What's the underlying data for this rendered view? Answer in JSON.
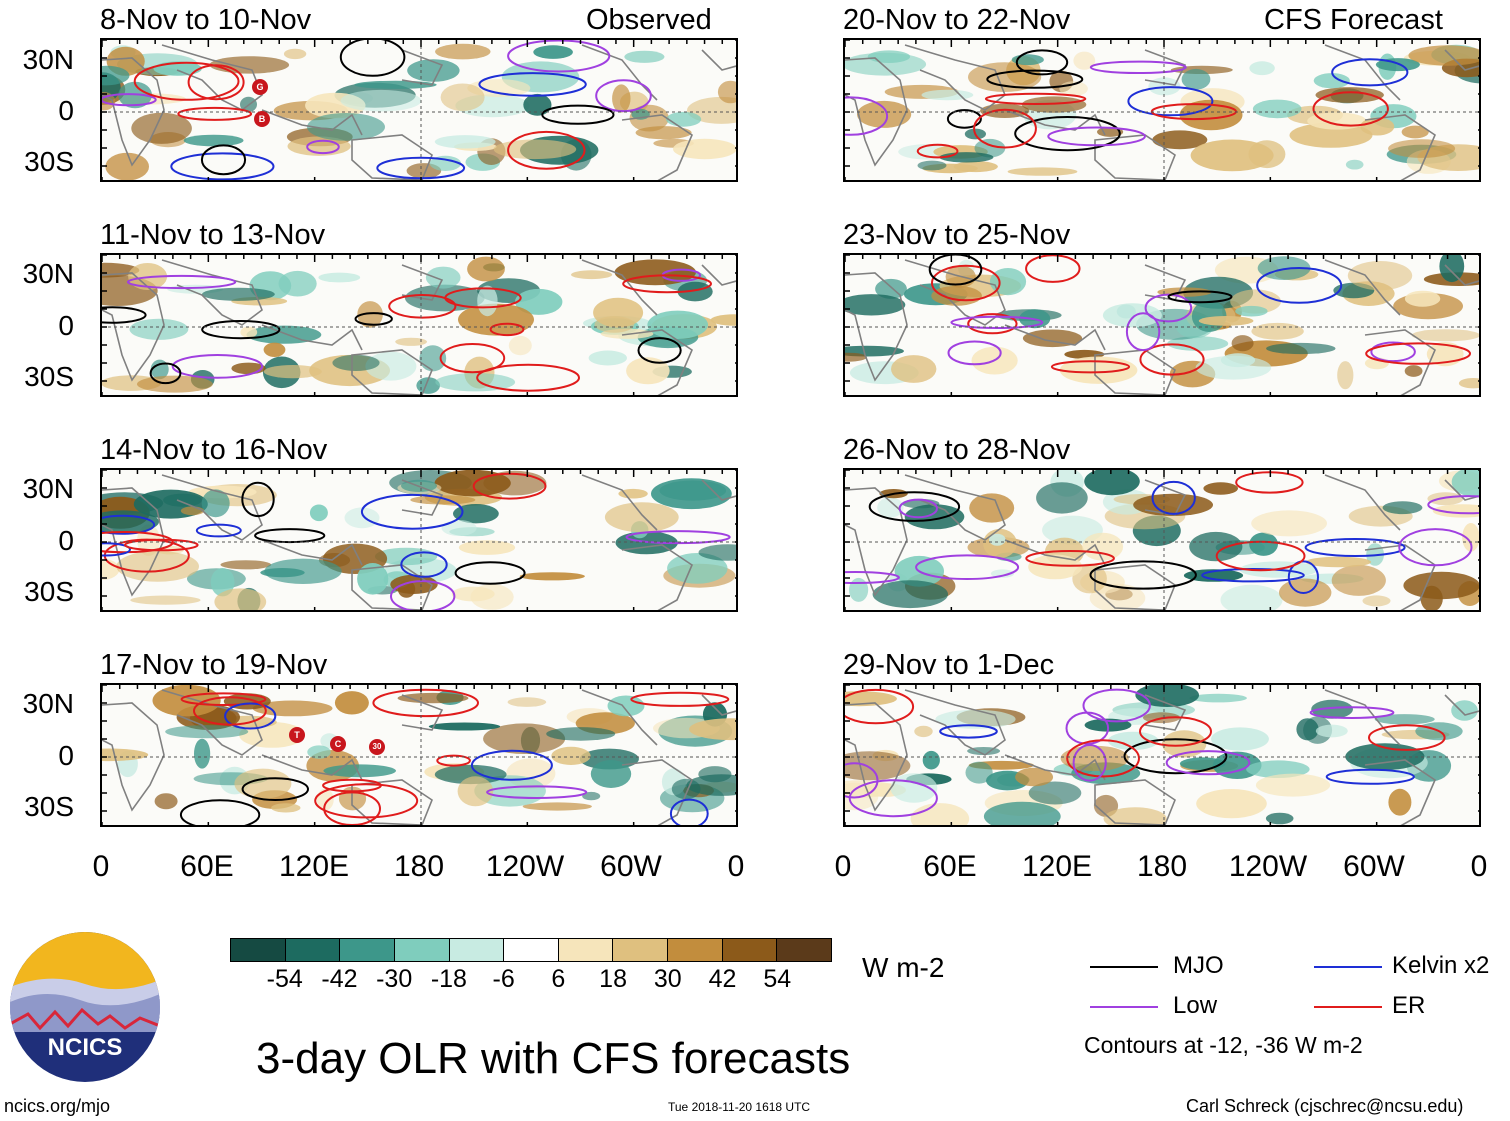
{
  "panels_left": [
    {
      "title": "8-Nov to 10-Nov",
      "tag": "Observed"
    },
    {
      "title": "11-Nov to 13-Nov",
      "tag": ""
    },
    {
      "title": "14-Nov to 16-Nov",
      "tag": ""
    },
    {
      "title": "17-Nov to 19-Nov",
      "tag": ""
    }
  ],
  "panels_right": [
    {
      "title": "20-Nov to 22-Nov",
      "tag": "CFS Forecast"
    },
    {
      "title": "23-Nov to 25-Nov",
      "tag": ""
    },
    {
      "title": "26-Nov to 28-Nov",
      "tag": ""
    },
    {
      "title": "29-Nov to 1-Dec",
      "tag": ""
    }
  ],
  "lat_labels": [
    "30N",
    "0",
    "30S"
  ],
  "lon_labels": [
    "0",
    "60E",
    "120E",
    "180",
    "120W",
    "60W",
    "0"
  ],
  "storm_markers_obs1": [
    "G",
    "B"
  ],
  "storm_markers_obs4": [
    "T",
    "C",
    "30"
  ],
  "chart_data": {
    "type": "heatmap",
    "title": "3-day OLR with CFS forecasts",
    "variable": "OLR anomaly",
    "units": "W m-2",
    "lat_range": [
      "30S",
      "30N"
    ],
    "lon_range": [
      "0",
      "0"
    ],
    "colorbar": {
      "ticks": [
        "-54",
        "-42",
        "-30",
        "-18",
        "-6",
        "6",
        "18",
        "30",
        "42",
        "54"
      ],
      "colors": [
        "#154a42",
        "#1d6b60",
        "#3d978a",
        "#7fcdbd",
        "#c8ebe2",
        "#ffffff",
        "#f6e5bb",
        "#dfc07f",
        "#c28d3d",
        "#8c5a1a",
        "#5b3a1a"
      ]
    },
    "contours": {
      "series": [
        {
          "name": "MJO",
          "color": "#000000"
        },
        {
          "name": "Kelvin x2",
          "color": "#1e2fd6"
        },
        {
          "name": "Low",
          "color": "#a040e0"
        },
        {
          "name": "ER",
          "color": "#e01c1c"
        }
      ],
      "note": "Contours at -12, -36 W m-2"
    }
  },
  "footer": {
    "logo_text": "NCICS",
    "url": "ncics.org/mjo",
    "timestamp": "Tue 2018-11-20 1618 UTC",
    "credit": "Carl Schreck (cjschrec@ncsu.edu)"
  }
}
